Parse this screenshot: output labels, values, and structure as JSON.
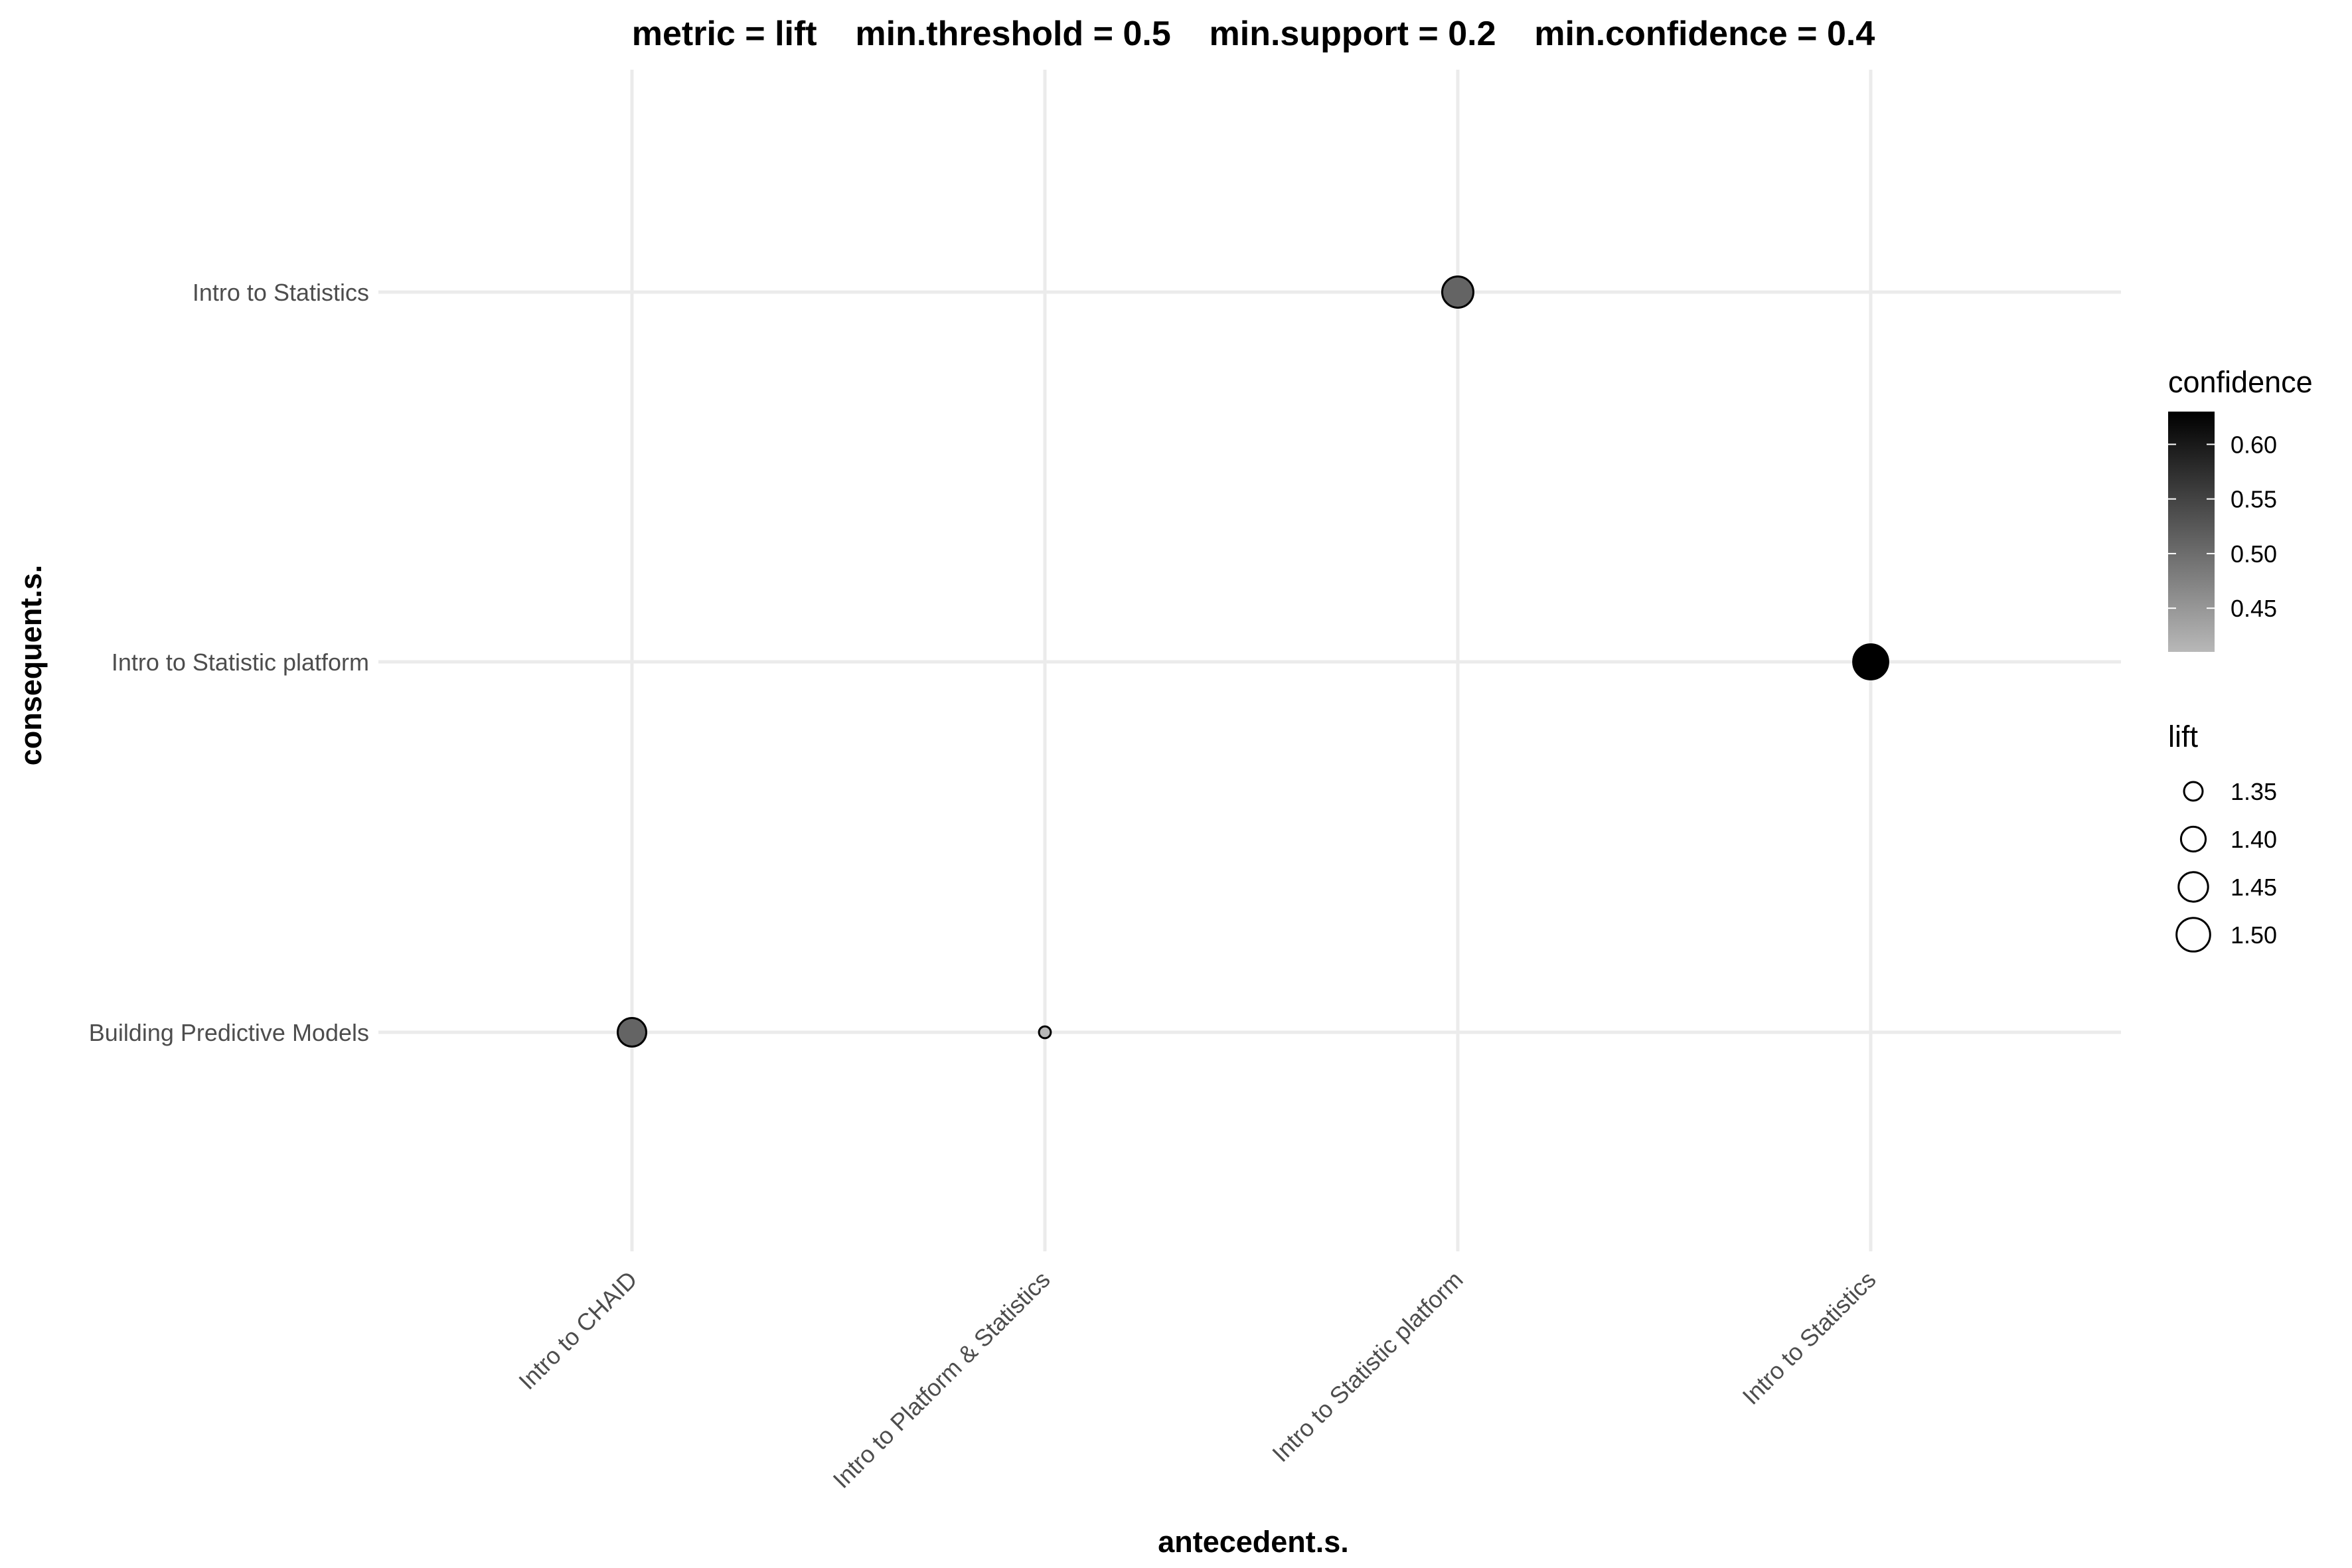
{
  "chart_data": {
    "type": "scatter",
    "title": "metric = lift    min.threshold = 0.5    min.support = 0.2    min.confidence = 0.4",
    "xlabel": "antecedent.s.",
    "ylabel": "consequent.s.",
    "x_categories": [
      "Intro to CHAID",
      "Intro to Platform & Statistics",
      "Intro to Statistic platform",
      "Intro to Statistics"
    ],
    "y_categories": [
      "Building Predictive Models",
      "Intro to Statistic platform",
      "Intro to Statistics"
    ],
    "points": [
      {
        "x": "Intro to CHAID",
        "y": "Building Predictive Models",
        "confidence": 0.51,
        "lift": 1.44
      },
      {
        "x": "Intro to Platform & Statistics",
        "y": "Building Predictive Models",
        "confidence": 0.41,
        "lift": 1.31
      },
      {
        "x": "Intro to Statistic platform",
        "y": "Intro to Statistics",
        "confidence": 0.51,
        "lift": 1.47
      },
      {
        "x": "Intro to Statistics",
        "y": "Intro to Statistic platform",
        "confidence": 0.63,
        "lift": 1.52
      }
    ],
    "confidence_legend": {
      "title": "confidence",
      "ticks": [
        "0.45",
        "0.50",
        "0.55",
        "0.60"
      ],
      "range": [
        0.41,
        0.63
      ],
      "color_low": "#b8b8b8",
      "color_high": "#000000"
    },
    "lift_legend": {
      "title": "lift",
      "ticks": [
        "1.35",
        "1.40",
        "1.45",
        "1.50"
      ]
    },
    "grid": true,
    "legend_position": "right"
  }
}
